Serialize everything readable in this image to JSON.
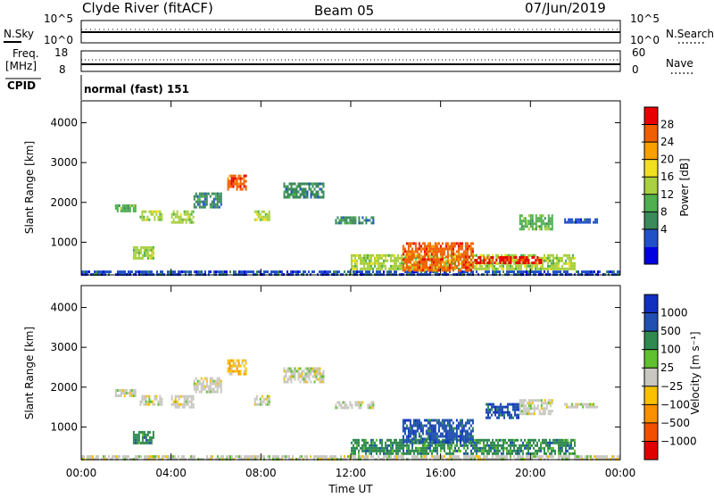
{
  "header": {
    "station": "Clyde River (fitACF)",
    "beam": "Beam 05",
    "date": "07/Jun/2019"
  },
  "strips": {
    "nsky_label": "N.Sky",
    "nsky_ticks": [
      "10^5",
      "10^0"
    ],
    "nsearch_label": "N.Search",
    "nsearch_ticks": [
      "10^5",
      "10^0"
    ],
    "freq_label_line1": "Freq.",
    "freq_label_line2": "[MHz]",
    "freq_ticks": [
      "18",
      "8"
    ],
    "nave_label": "Nave",
    "nave_ticks": [
      "60",
      "0"
    ],
    "cpid_label": "CPID",
    "cpid_value": "normal (fast) 151"
  },
  "chart_data": [
    {
      "type": "heatmap",
      "panel": "power",
      "ylabel": "Slant Range [km]",
      "yticks": [
        1000,
        2000,
        3000,
        4000
      ],
      "ylim": [
        180,
        4550
      ],
      "xlim": [
        0,
        24
      ],
      "colorbar": {
        "label": "Power [dB]",
        "ticks": [
          "28",
          "24",
          "20",
          "16",
          "12",
          "8",
          "4"
        ],
        "colors": [
          "#0000e0",
          "#2050c8",
          "#3a8a5a",
          "#50b050",
          "#a8d040",
          "#f0e020",
          "#f8a000",
          "#f06000",
          "#e80000"
        ]
      },
      "echo_regions": [
        {
          "t0": 0.0,
          "t1": 24.0,
          "r0": 190,
          "r1": 290,
          "level": "4-8"
        },
        {
          "t0": 1.5,
          "t1": 2.4,
          "r0": 1750,
          "r1": 1950,
          "level": "12-16"
        },
        {
          "t0": 2.3,
          "t1": 3.2,
          "r0": 600,
          "r1": 900,
          "level": "12-20"
        },
        {
          "t0": 2.6,
          "t1": 3.6,
          "r0": 1550,
          "r1": 1800,
          "level": "16-20"
        },
        {
          "t0": 4.0,
          "t1": 5.0,
          "r0": 1500,
          "r1": 1800,
          "level": "16-20"
        },
        {
          "t0": 5.0,
          "t1": 6.2,
          "r0": 1850,
          "r1": 2250,
          "level": "8-12"
        },
        {
          "t0": 6.5,
          "t1": 7.3,
          "r0": 2300,
          "r1": 2700,
          "level": "20-28"
        },
        {
          "t0": 7.7,
          "t1": 8.4,
          "r0": 1550,
          "r1": 1800,
          "level": "16-20"
        },
        {
          "t0": 9.0,
          "t1": 10.8,
          "r0": 2150,
          "r1": 2500,
          "level": "8-12"
        },
        {
          "t0": 11.3,
          "t1": 13.0,
          "r0": 1500,
          "r1": 1650,
          "level": "8-12"
        },
        {
          "t0": 12.0,
          "t1": 22.0,
          "r0": 300,
          "r1": 700,
          "level": "12-20"
        },
        {
          "t0": 14.3,
          "t1": 17.4,
          "r0": 300,
          "r1": 1000,
          "level": "20-28"
        },
        {
          "t0": 17.5,
          "t1": 20.5,
          "r0": 450,
          "r1": 650,
          "level": "24-28"
        },
        {
          "t0": 19.5,
          "t1": 21.0,
          "r0": 1300,
          "r1": 1700,
          "level": "12-16"
        },
        {
          "t0": 21.5,
          "t1": 23.0,
          "r0": 1500,
          "r1": 1600,
          "level": "4-8"
        }
      ]
    },
    {
      "type": "heatmap",
      "panel": "velocity",
      "ylabel": "Slant Range [km]",
      "xlabel": "Time UT",
      "xticks": [
        "00:00",
        "04:00",
        "08:00",
        "12:00",
        "16:00",
        "20:00",
        "00:00"
      ],
      "yticks": [
        1000,
        2000,
        3000,
        4000
      ],
      "ylim": [
        180,
        4550
      ],
      "xlim": [
        0,
        24
      ],
      "colorbar": {
        "label": "Velocity [m s⁻¹]",
        "ticks": [
          "1000",
          "500",
          "100",
          "25",
          "−25",
          "−100",
          "−500",
          "−1000"
        ],
        "colors": [
          "#e00000",
          "#f05000",
          "#f89000",
          "#f8c000",
          "#c8c8c0",
          "#60c030",
          "#308a50",
          "#2050b0",
          "#1030c0"
        ]
      },
      "echo_regions": [
        {
          "t0": 0.0,
          "t1": 24.0,
          "r0": 190,
          "r1": 290,
          "level": "-25..25"
        },
        {
          "t0": 1.5,
          "t1": 2.4,
          "r0": 1750,
          "r1": 1950,
          "level": "-25..25"
        },
        {
          "t0": 2.3,
          "t1": 3.2,
          "r0": 600,
          "r1": 900,
          "level": "25..100"
        },
        {
          "t0": 2.6,
          "t1": 3.6,
          "r0": 1550,
          "r1": 1800,
          "level": "-25..25"
        },
        {
          "t0": 4.0,
          "t1": 5.0,
          "r0": 1500,
          "r1": 1800,
          "level": "-25..25"
        },
        {
          "t0": 5.0,
          "t1": 6.2,
          "r0": 1850,
          "r1": 2250,
          "level": "-25..25"
        },
        {
          "t0": 6.5,
          "t1": 7.3,
          "r0": 2300,
          "r1": 2700,
          "level": "-100..-25"
        },
        {
          "t0": 7.7,
          "t1": 8.4,
          "r0": 1550,
          "r1": 1800,
          "level": "-25..25"
        },
        {
          "t0": 9.0,
          "t1": 10.8,
          "r0": 2150,
          "r1": 2500,
          "level": "-25..25"
        },
        {
          "t0": 11.3,
          "t1": 13.0,
          "r0": 1500,
          "r1": 1650,
          "level": "-25..25"
        },
        {
          "t0": 12.0,
          "t1": 22.0,
          "r0": 300,
          "r1": 700,
          "level": "25..100"
        },
        {
          "t0": 14.3,
          "t1": 17.4,
          "r0": 600,
          "r1": 1200,
          "level": "500..1000"
        },
        {
          "t0": 18.0,
          "t1": 19.5,
          "r0": 1200,
          "r1": 1600,
          "level": "500..1000"
        },
        {
          "t0": 19.5,
          "t1": 21.0,
          "r0": 1300,
          "r1": 1700,
          "level": "-25..25"
        },
        {
          "t0": 21.5,
          "t1": 23.0,
          "r0": 1500,
          "r1": 1600,
          "level": "-25..25"
        }
      ]
    }
  ]
}
